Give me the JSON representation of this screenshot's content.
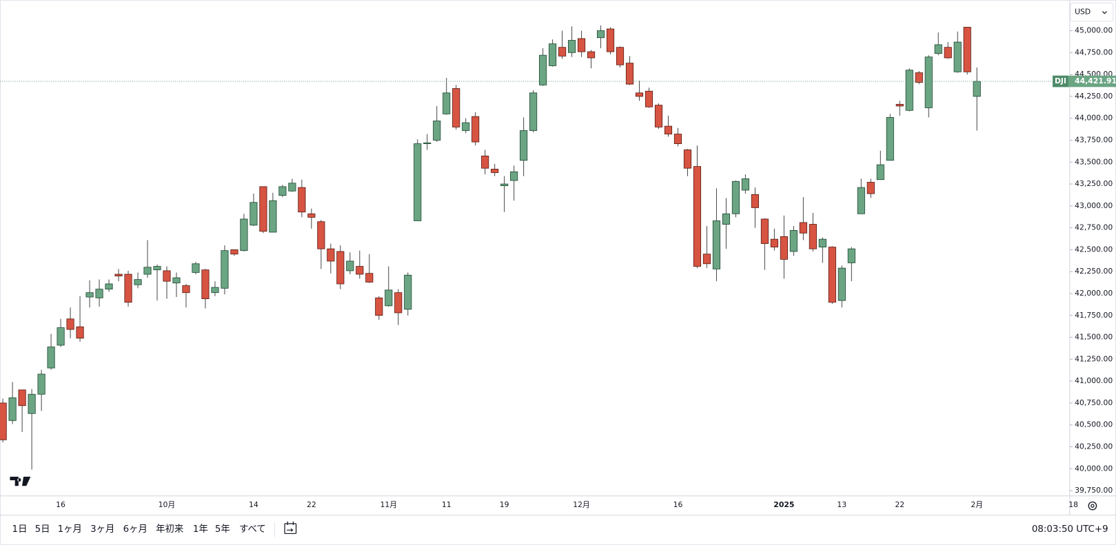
{
  "chart_data": {
    "type": "candlestick",
    "categories": [
      null,
      null,
      null,
      null,
      null,
      null,
      "16",
      null,
      null,
      null,
      null,
      null,
      null,
      null,
      null,
      null,
      null,
      "10月",
      null,
      null,
      null,
      null,
      null,
      null,
      null,
      null,
      "14",
      null,
      null,
      null,
      null,
      null,
      "22",
      null,
      null,
      null,
      null,
      null,
      null,
      null,
      "11月",
      null,
      null,
      null,
      null,
      null,
      "11",
      null,
      null,
      null,
      null,
      null,
      "19",
      null,
      null,
      null,
      null,
      null,
      null,
      null,
      "12月",
      null,
      null,
      null,
      null,
      null,
      null,
      null,
      null,
      null,
      "16",
      null,
      null,
      null,
      null,
      null,
      null,
      null,
      null,
      null,
      null,
      "2025",
      null,
      null,
      null,
      null,
      null,
      "13",
      null,
      null,
      null,
      null,
      null,
      "22",
      null,
      null,
      null,
      null,
      null,
      null,
      null,
      "2月"
    ],
    "future_categories": [
      null,
      null,
      null,
      null,
      null,
      null,
      null,
      null,
      null,
      "18"
    ],
    "series": [
      {
        "name": "DJI",
        "up_color": "#6ba583",
        "down_color": "#d75442",
        "open": [
          40750,
          40550,
          40900,
          40630,
          40850,
          41150,
          41410,
          41710,
          41620,
          41960,
          41950,
          42050,
          42220,
          42220,
          42100,
          42220,
          42270,
          42260,
          42120,
          42090,
          42240,
          42270,
          42010,
          42060,
          42500,
          42490,
          42780,
          43220,
          42700,
          43120,
          43170,
          43210,
          42910,
          42820,
          42510,
          42480,
          42260,
          42310,
          42230,
          41950,
          41860,
          42010,
          41820,
          42830,
          43710,
          43750,
          44050,
          44340,
          43860,
          44020,
          43570,
          43420,
          43230,
          43290,
          43520,
          43860,
          44380,
          44600,
          44810,
          44750,
          44910,
          44760,
          44920,
          45020,
          44810,
          44630,
          44290,
          44310,
          44150,
          43910,
          43820,
          43640,
          43450,
          42450,
          42280,
          42790,
          42910,
          43180,
          43130,
          42850,
          42620,
          42650,
          42480,
          42810,
          42790,
          42530,
          42530,
          41920,
          42350,
          42910,
          43270,
          43300,
          43520,
          44160,
          44090,
          44520,
          44120,
          44740,
          44810,
          44530,
          45040,
          44250
        ],
        "high": [
          40800,
          40990,
          40900,
          40910,
          41130,
          41540,
          41710,
          41840,
          41970,
          42150,
          42160,
          42160,
          42280,
          42260,
          42240,
          42610,
          42330,
          42310,
          42240,
          42110,
          42360,
          42280,
          42140,
          42550,
          42500,
          42910,
          43140,
          43220,
          43150,
          43240,
          43310,
          43300,
          42970,
          42840,
          42570,
          42550,
          42470,
          42490,
          42450,
          41970,
          42310,
          42050,
          42240,
          43760,
          43820,
          44140,
          44460,
          44380,
          44000,
          44070,
          43640,
          43480,
          43340,
          43460,
          44010,
          44320,
          44800,
          44900,
          45000,
          45050,
          45000,
          44780,
          45060,
          45040,
          44820,
          44710,
          44430,
          44350,
          44170,
          44030,
          43890,
          43650,
          43690,
          42770,
          43200,
          43090,
          43290,
          43360,
          43210,
          42860,
          42740,
          42890,
          42770,
          43100,
          42920,
          42640,
          42540,
          42320,
          42530,
          43310,
          43310,
          43630,
          44050,
          44200,
          44570,
          44540,
          44720,
          44980,
          44870,
          44990,
          45040,
          44580
        ],
        "low": [
          40300,
          40510,
          40420,
          39990,
          40660,
          41130,
          41390,
          41490,
          41450,
          41840,
          41850,
          42020,
          42140,
          41850,
          42060,
          42180,
          41920,
          41940,
          41960,
          41840,
          42220,
          41830,
          41970,
          41990,
          42430,
          42480,
          42770,
          42690,
          42700,
          43100,
          43160,
          42870,
          42740,
          42280,
          42230,
          42050,
          42220,
          42170,
          42120,
          41700,
          41850,
          41640,
          41750,
          42830,
          43640,
          43730,
          44040,
          43870,
          43830,
          43690,
          43360,
          43340,
          42930,
          43060,
          43340,
          43840,
          44370,
          44590,
          44680,
          44700,
          44700,
          44570,
          44800,
          44730,
          44580,
          44380,
          44200,
          44120,
          43880,
          43790,
          43680,
          43340,
          42290,
          42290,
          42140,
          42510,
          42870,
          43140,
          42750,
          42270,
          42490,
          42170,
          42430,
          42610,
          42480,
          42350,
          41880,
          41840,
          42140,
          42910,
          43090,
          43300,
          43520,
          44030,
          44080,
          44390,
          44010,
          44720,
          44680,
          44520,
          44500,
          43860
        ],
        "close": [
          40330,
          40810,
          40720,
          40850,
          41080,
          41390,
          41610,
          41590,
          41490,
          42010,
          42050,
          42110,
          42200,
          41900,
          42160,
          42300,
          42310,
          42140,
          42180,
          42010,
          42340,
          41940,
          42070,
          42490,
          42450,
          42850,
          43040,
          42710,
          43060,
          43220,
          43260,
          42930,
          42870,
          42510,
          42370,
          42110,
          42370,
          42220,
          42130,
          41750,
          42040,
          41780,
          42210,
          43710,
          43720,
          43970,
          44290,
          43900,
          43950,
          43730,
          43430,
          43380,
          43250,
          43390,
          43860,
          44290,
          44720,
          44850,
          44710,
          44890,
          44760,
          44690,
          45000,
          44760,
          44610,
          44390,
          44250,
          44130,
          43900,
          43820,
          43710,
          43430,
          42310,
          42340,
          42830,
          42910,
          43280,
          43310,
          42980,
          42570,
          42530,
          42390,
          42720,
          42690,
          42510,
          42620,
          41900,
          42290,
          42510,
          43210,
          43140,
          43470,
          44010,
          44140,
          44550,
          44410,
          44700,
          44840,
          44690,
          44870,
          44530,
          44421.91
        ]
      }
    ],
    "last_price": {
      "symbol": "DJI",
      "label": "44,421.91",
      "color": "#6ba583"
    },
    "ylim": [
      39690,
      45350
    ],
    "yticks": [
      {
        "value": 45000,
        "label": "45,000.00"
      },
      {
        "value": 44750,
        "label": "44,750.00"
      },
      {
        "value": 44500,
        "label": "44,500.00"
      },
      {
        "value": 44250,
        "label": "44,250.00"
      },
      {
        "value": 44000,
        "label": "44,000.00"
      },
      {
        "value": 43750,
        "label": "43,750.00"
      },
      {
        "value": 43500,
        "label": "43,500.00"
      },
      {
        "value": 43250,
        "label": "43,250.00"
      },
      {
        "value": 43000,
        "label": "43,000.00"
      },
      {
        "value": 42750,
        "label": "42,750.00"
      },
      {
        "value": 42500,
        "label": "42,500.00"
      },
      {
        "value": 42250,
        "label": "42,250.00"
      },
      {
        "value": 42000,
        "label": "42,000.00"
      },
      {
        "value": 41750,
        "label": "41,750.00"
      },
      {
        "value": 41500,
        "label": "41,500.00"
      },
      {
        "value": 41250,
        "label": "41,250.00"
      },
      {
        "value": 41000,
        "label": "41,000.00"
      },
      {
        "value": 40750,
        "label": "40,750.00"
      },
      {
        "value": 40500,
        "label": "40,500.00"
      },
      {
        "value": 40250,
        "label": "40,250.00"
      },
      {
        "value": 40000,
        "label": "40,000.00"
      },
      {
        "value": 39750,
        "label": "39,750.00"
      }
    ],
    "grid": false,
    "currency": "USD"
  },
  "toolbar": {
    "ranges": [
      "1日",
      "5日",
      "1ヶ月",
      "3ヶ月",
      "6ヶ月",
      "年初来",
      "1年",
      "5年",
      "すべて"
    ],
    "clock": "08:03:50 UTC+9"
  }
}
